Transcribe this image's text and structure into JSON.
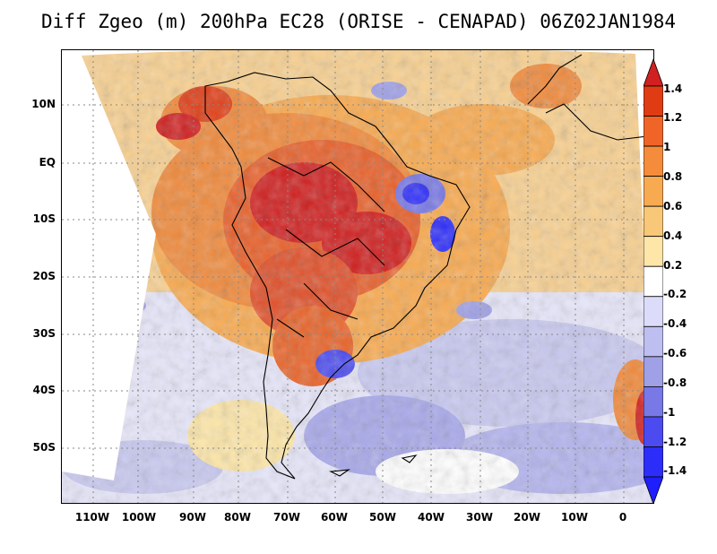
{
  "title": "Diff Zgeo (m) 200hPa EC28 (ORISE - CENAPAD) 06Z02JAN1984",
  "map": {
    "lat_labels": [
      "10N",
      "EQ",
      "10S",
      "20S",
      "30S",
      "40S",
      "50S"
    ],
    "lat_values": [
      10,
      0,
      -10,
      -20,
      -30,
      -40,
      -50
    ],
    "lon_labels": [
      "110W",
      "100W",
      "90W",
      "80W",
      "70W",
      "60W",
      "50W",
      "40W",
      "30W",
      "20W",
      "10W",
      "0"
    ],
    "lon_values": [
      -110,
      -100,
      -90,
      -80,
      -70,
      -60,
      -50,
      -40,
      -30,
      -20,
      -10,
      0
    ],
    "lat_range": [
      -60,
      19
    ],
    "lon_range": [
      -117,
      6
    ]
  },
  "colorbar": {
    "labels": [
      "1.4",
      "1.2",
      "1",
      "0.8",
      "0.6",
      "0.4",
      "0.2",
      "-0.2",
      "-0.4",
      "-0.6",
      "-0.8",
      "-1",
      "-1.2",
      "-1.4"
    ],
    "colors": [
      "#d02020",
      "#e03c14",
      "#f06428",
      "#f58c3c",
      "#f8aa50",
      "#f8c878",
      "#fde6a8",
      "#ffffff",
      "#dcdcfa",
      "#bebef0",
      "#a0a0e6",
      "#7878e6",
      "#4b4bf0",
      "#2d2dfa",
      "#1e1eff"
    ]
  }
}
